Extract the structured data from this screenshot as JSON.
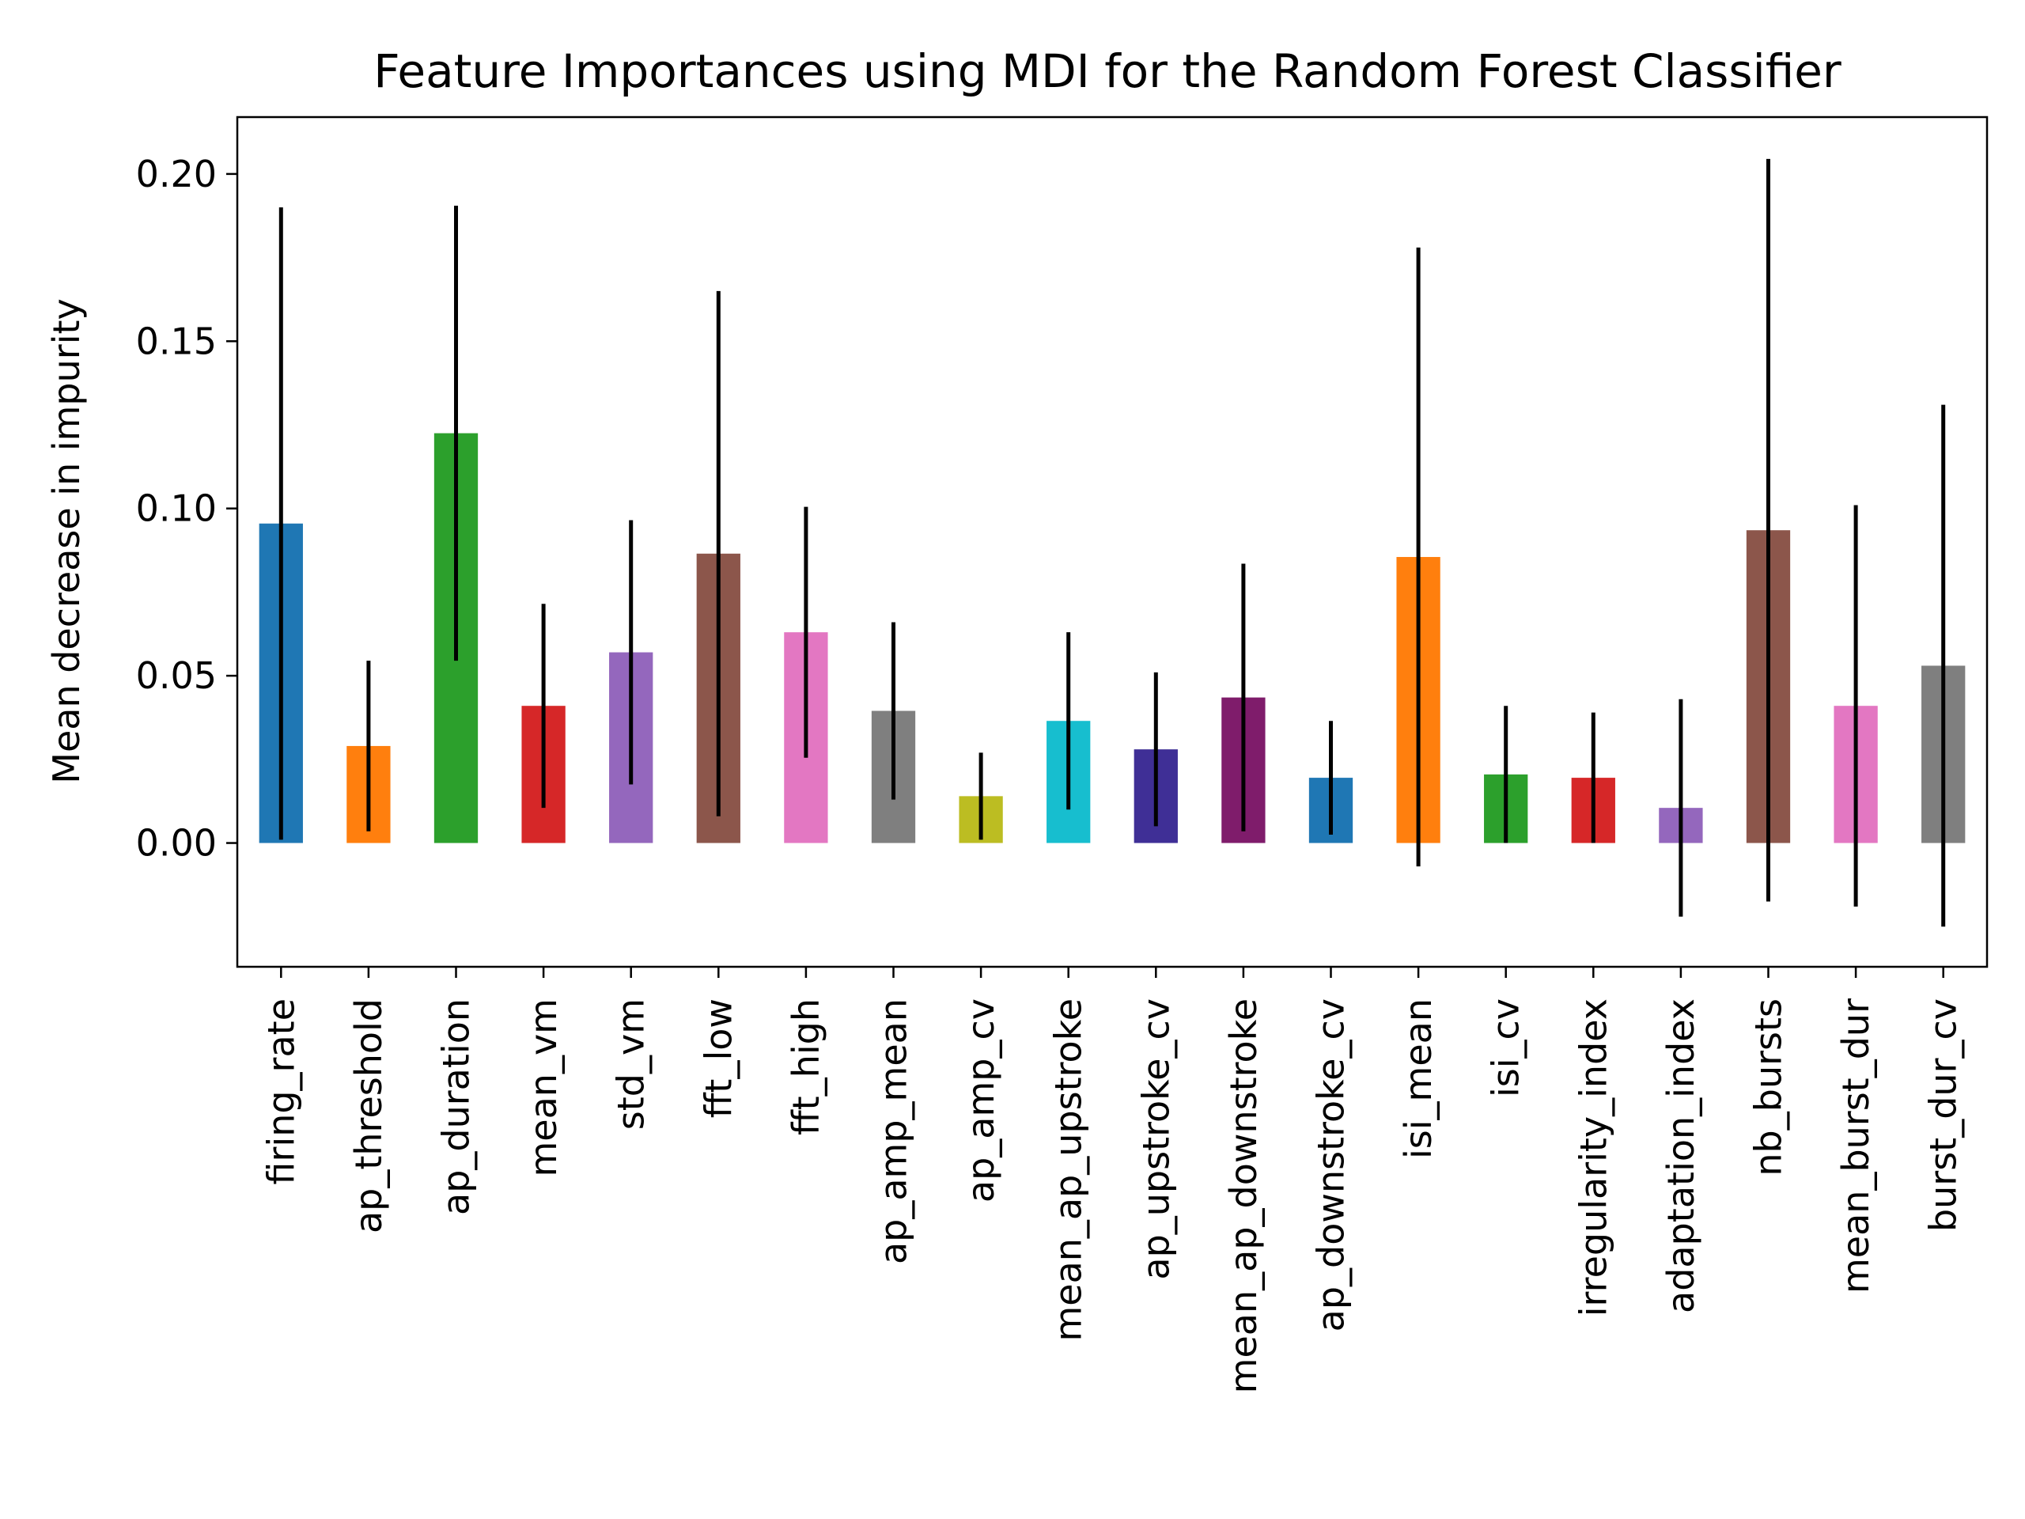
{
  "chart_data": {
    "type": "bar",
    "title": "Feature Importances using MDI for the Random Forest Classifier",
    "ylabel": "Mean decrease in impurity",
    "xlabel": "",
    "ylim": [
      -0.037,
      0.217
    ],
    "yticks": [
      0.0,
      0.05,
      0.1,
      0.15,
      0.2
    ],
    "ytick_labels": [
      "0.00",
      "0.05",
      "0.10",
      "0.15",
      "0.20"
    ],
    "grid": false,
    "legend": "none",
    "categories": [
      "firing_rate",
      "ap_threshold",
      "ap_duration",
      "mean_vm",
      "std_vm",
      "fft_low",
      "fft_high",
      "ap_amp_mean",
      "ap_amp_cv",
      "mean_ap_upstroke",
      "ap_upstroke_cv",
      "mean_ap_downstroke",
      "ap_downstroke_cv",
      "isi_mean",
      "isi_cv",
      "irregularity_index",
      "adaptation_index",
      "nb_bursts",
      "mean_burst_dur",
      "burst_dur_cv"
    ],
    "values": [
      0.0955,
      0.029,
      0.1225,
      0.041,
      0.057,
      0.0865,
      0.063,
      0.0395,
      0.014,
      0.0365,
      0.028,
      0.0435,
      0.0195,
      0.0855,
      0.0205,
      0.0195,
      0.0105,
      0.0935,
      0.041,
      0.053
    ],
    "errors": [
      0.0945,
      0.0255,
      0.068,
      0.0305,
      0.0395,
      0.0785,
      0.0375,
      0.0265,
      0.013,
      0.0265,
      0.023,
      0.04,
      0.017,
      0.0925,
      0.0205,
      0.0195,
      0.0325,
      0.111,
      0.06,
      0.078
    ],
    "colors": [
      "#1f77b4",
      "#ff7f0e",
      "#2ca02c",
      "#d62728",
      "#9467bd",
      "#8c564b",
      "#e377c2",
      "#7f7f7f",
      "#bcbd22",
      "#17becf",
      "#3f2f96",
      "#7f1c6b",
      "#1f77b4",
      "#ff7f0e",
      "#2ca02c",
      "#d62728",
      "#9467bd",
      "#8c564b",
      "#e377c2",
      "#7f7f7f"
    ],
    "error_bar_color": "#000000"
  }
}
